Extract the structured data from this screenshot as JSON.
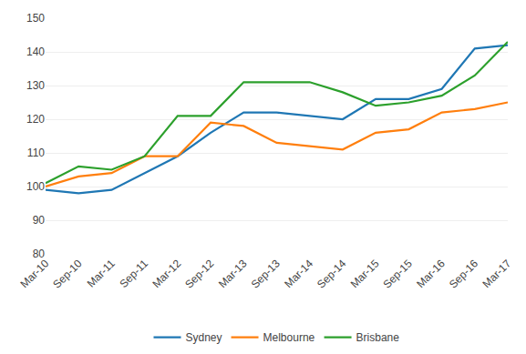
{
  "chart_data": {
    "type": "line",
    "categories": [
      "Mar-10",
      "Sep-10",
      "Mar-11",
      "Sep-11",
      "Mar-12",
      "Sep-12",
      "Mar-13",
      "Sep-13",
      "Mar-14",
      "Sep-14",
      "Mar-15",
      "Sep-15",
      "Mar-16",
      "Sep-16",
      "Mar-17"
    ],
    "series": [
      {
        "name": "Sydney",
        "values": [
          99,
          98,
          99,
          104,
          109,
          116,
          122,
          122,
          121,
          120,
          126,
          126,
          129,
          141,
          142
        ]
      },
      {
        "name": "Melbourne",
        "values": [
          100,
          103,
          104,
          109,
          109,
          119,
          118,
          113,
          112,
          111,
          116,
          117,
          122,
          123,
          125
        ]
      },
      {
        "name": "Brisbane",
        "values": [
          101,
          106,
          105,
          109,
          121,
          121,
          131,
          131,
          131,
          128,
          124,
          125,
          127,
          133,
          143
        ]
      }
    ],
    "ylim": [
      80,
      150
    ],
    "yticks": [
      80,
      90,
      100,
      110,
      120,
      130,
      140,
      150
    ],
    "grid": true,
    "legend": "bottom"
  }
}
